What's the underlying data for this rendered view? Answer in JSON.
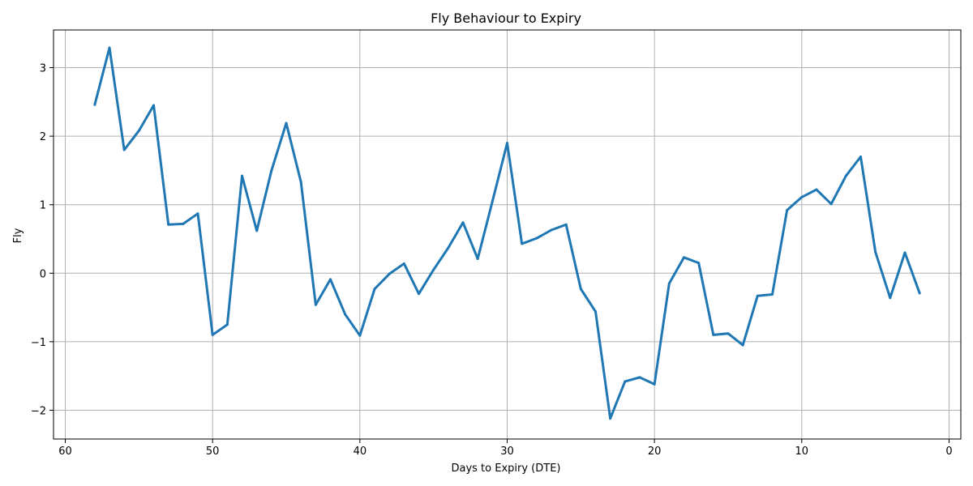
{
  "chart_data": {
    "type": "line",
    "title": "Fly Behaviour to Expiry",
    "xlabel": "Days to Expiry (DTE)",
    "ylabel": "Fly",
    "x_inverted": true,
    "xlim": [
      60.8,
      -0.8
    ],
    "ylim": [
      -2.42,
      3.55
    ],
    "xticks": [
      60,
      50,
      40,
      30,
      20,
      10,
      0
    ],
    "yticks": [
      3,
      2,
      1,
      0,
      -1,
      -2
    ],
    "grid": true,
    "legend": "none",
    "series": [
      {
        "color": "#1f77b4",
        "x": [
          58,
          57,
          56,
          55,
          54,
          53,
          52,
          51,
          50,
          49,
          48,
          47,
          46,
          45,
          44,
          43,
          42,
          41,
          40,
          39,
          38,
          37,
          36,
          35,
          34,
          33,
          32,
          31,
          30,
          29,
          28,
          27,
          26,
          25,
          24,
          23,
          22,
          21,
          20,
          19,
          18,
          17,
          16,
          15,
          14,
          13,
          12,
          11,
          10,
          9,
          8,
          7,
          6,
          5,
          4,
          3,
          2
        ],
        "y": [
          2.46,
          3.29,
          1.8,
          2.08,
          2.45,
          0.71,
          0.72,
          0.87,
          -0.9,
          -0.75,
          1.42,
          0.62,
          1.5,
          2.19,
          1.33,
          -0.46,
          -0.09,
          -0.6,
          -0.91,
          -0.23,
          -0.01,
          0.14,
          -0.3,
          0.05,
          0.37,
          0.74,
          0.21,
          1.05,
          1.9,
          0.43,
          0.51,
          0.63,
          0.71,
          -0.23,
          -0.56,
          -2.12,
          -1.58,
          -1.52,
          -1.62,
          -0.15,
          0.23,
          0.15,
          -0.9,
          -0.88,
          -1.05,
          -0.33,
          -0.31,
          0.92,
          1.11,
          1.22,
          1.01,
          1.42,
          1.7,
          0.31,
          -0.36,
          0.3,
          -0.29
        ]
      }
    ]
  }
}
